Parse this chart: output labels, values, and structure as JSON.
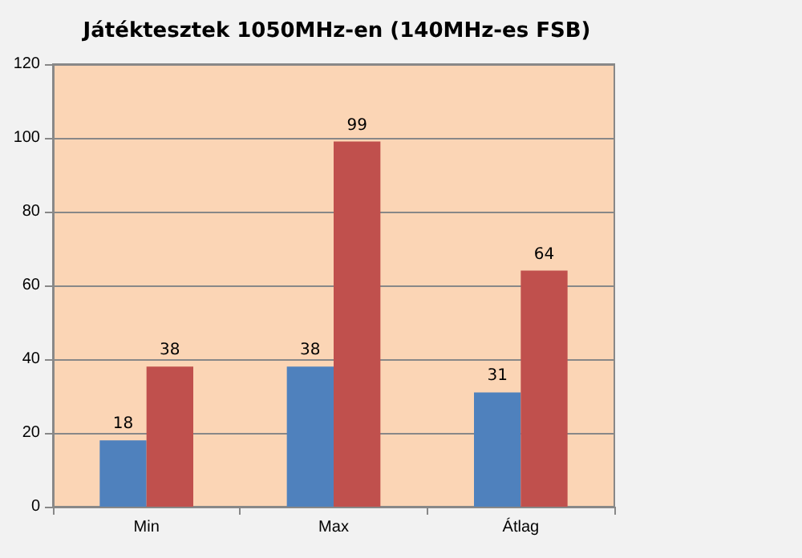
{
  "chart_data": {
    "type": "bar",
    "title": "Játéktesztek 1050MHz-en (140MHz-es FSB)",
    "categories": [
      "Min",
      "Max",
      "Átlag"
    ],
    "series": [
      {
        "color": "#4f81bd",
        "values": [
          18,
          38,
          31
        ]
      },
      {
        "color": "#c0504d",
        "values": [
          38,
          99,
          64
        ]
      }
    ],
    "ylim": [
      0,
      120
    ],
    "yticks": [
      0,
      20,
      40,
      60,
      80,
      100,
      120
    ],
    "grid": "y",
    "data_labels": true
  }
}
